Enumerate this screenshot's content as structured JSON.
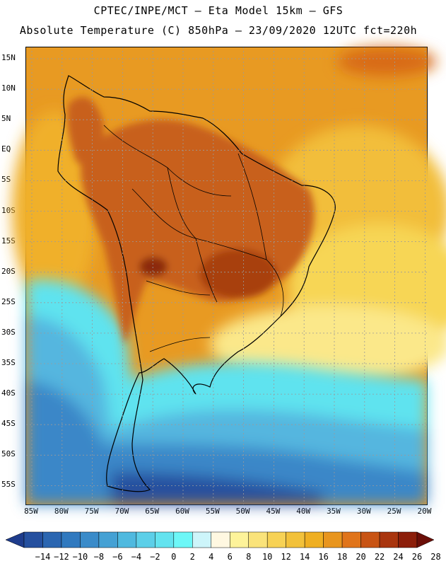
{
  "header": {
    "line1": "CPTEC/INPE/MCT –  Eta Model 15km – GFS",
    "line2": "Absolute Temperature (C) 850hPa – 23/09/2020 12UTC fct=220h"
  },
  "map": {
    "lat_labels": [
      "15N",
      "10N",
      "5N",
      "EQ",
      "5S",
      "10S",
      "15S",
      "20S",
      "25S",
      "30S",
      "35S",
      "40S",
      "45S",
      "50S",
      "55S"
    ],
    "lon_labels": [
      "85W",
      "80W",
      "75W",
      "70W",
      "65W",
      "60W",
      "55W",
      "50W",
      "45W",
      "40W",
      "35W",
      "30W",
      "25W",
      "20W"
    ],
    "colors": {
      "hot": "#c0501a",
      "warm": "#e08a1e",
      "mild": "#efaa22",
      "cool_yellow": "#f6d64a",
      "cyan": "#5fe3ef",
      "light_blue": "#55b6df",
      "blue": "#3a87c8",
      "dark_blue": "#26509f",
      "coast": "#000000"
    }
  },
  "colorbar": {
    "labels": [
      "−14",
      "−12",
      "−10",
      "−8",
      "−6",
      "−4",
      "−2",
      "0",
      "2",
      "4",
      "6",
      "8",
      "10",
      "12",
      "14",
      "16",
      "18",
      "20",
      "22",
      "24",
      "26",
      "28"
    ],
    "colors": [
      "#1e3c8c",
      "#25509f",
      "#2b66b1",
      "#3079bf",
      "#3a8bc9",
      "#45a1d4",
      "#4fb9df",
      "#5ccfe8",
      "#63e3ef",
      "#6df7f7",
      "#cdf5fa",
      "#fff8e1",
      "#fdf39a",
      "#fae37a",
      "#f7d255",
      "#f2c13a",
      "#efaf22",
      "#e8951e",
      "#e0741a",
      "#c85414",
      "#a9350e",
      "#8c1e0a",
      "#6b0e08"
    ]
  }
}
